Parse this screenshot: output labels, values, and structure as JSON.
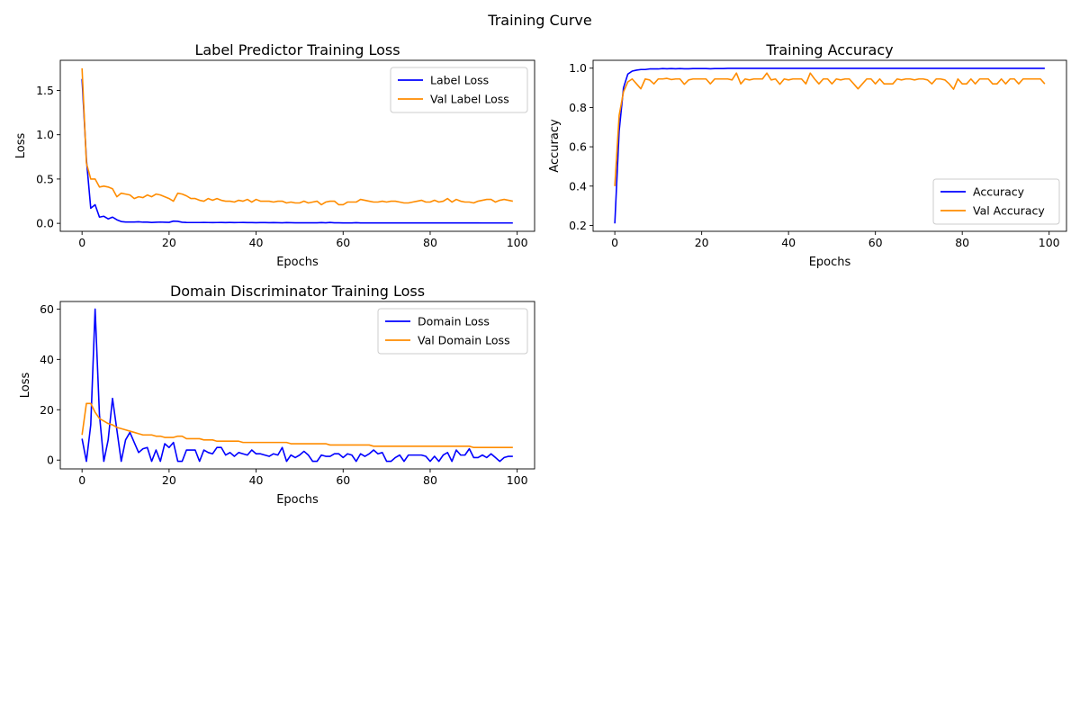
{
  "figure": {
    "title": "Training Curve"
  },
  "chart_data": [
    {
      "type": "line",
      "title": "Label Predictor Training Loss",
      "xlabel": "Epochs",
      "ylabel": "Loss",
      "xlim": [
        -5,
        104
      ],
      "ylim": [
        -0.09,
        1.84
      ],
      "xticks": [
        0,
        20,
        40,
        60,
        80,
        100
      ],
      "xtick_labels": [
        "0",
        "20",
        "40",
        "60",
        "80",
        "100"
      ],
      "yticks": [
        0,
        0.5,
        1,
        1.5
      ],
      "ytick_labels": [
        "0.0",
        "0.5",
        "1.0",
        "1.5"
      ],
      "legend": "upper right",
      "grid": false,
      "x": [
        0,
        1,
        2,
        3,
        4,
        5,
        6,
        7,
        8,
        9,
        10,
        11,
        12,
        13,
        14,
        15,
        16,
        17,
        18,
        19,
        20,
        21,
        22,
        23,
        24,
        25,
        26,
        27,
        28,
        29,
        30,
        31,
        32,
        33,
        34,
        35,
        36,
        37,
        38,
        39,
        40,
        41,
        42,
        43,
        44,
        45,
        46,
        47,
        48,
        49,
        50,
        51,
        52,
        53,
        54,
        55,
        56,
        57,
        58,
        59,
        60,
        61,
        62,
        63,
        64,
        65,
        66,
        67,
        68,
        69,
        70,
        71,
        72,
        73,
        74,
        75,
        76,
        77,
        78,
        79,
        80,
        81,
        82,
        83,
        84,
        85,
        86,
        87,
        88,
        89,
        90,
        91,
        92,
        93,
        94,
        95,
        96,
        97,
        98,
        99
      ],
      "series": [
        {
          "name": "Label Loss",
          "color": "#0000ff",
          "values": [
            1.63,
            0.72,
            0.17,
            0.21,
            0.07,
            0.08,
            0.05,
            0.07,
            0.04,
            0.02,
            0.015,
            0.015,
            0.015,
            0.017,
            0.013,
            0.013,
            0.01,
            0.012,
            0.014,
            0.012,
            0.011,
            0.025,
            0.022,
            0.012,
            0.01,
            0.009,
            0.009,
            0.009,
            0.01,
            0.009,
            0.008,
            0.009,
            0.01,
            0.008,
            0.01,
            0.008,
            0.009,
            0.01,
            0.008,
            0.008,
            0.007,
            0.008,
            0.008,
            0.007,
            0.008,
            0.007,
            0.006,
            0.008,
            0.007,
            0.006,
            0.006,
            0.006,
            0.006,
            0.006,
            0.006,
            0.008,
            0.006,
            0.01,
            0.006,
            0.006,
            0.005,
            0.005,
            0.005,
            0.007,
            0.005,
            0.005,
            0.005,
            0.005,
            0.005,
            0.005,
            0.005,
            0.005,
            0.005,
            0.005,
            0.005,
            0.005,
            0.005,
            0.005,
            0.005,
            0.005,
            0.005,
            0.005,
            0.005,
            0.005,
            0.005,
            0.005,
            0.005,
            0.005,
            0.005,
            0.005,
            0.005,
            0.005,
            0.004,
            0.004,
            0.004,
            0.004,
            0.004,
            0.004,
            0.004,
            0.004
          ]
        },
        {
          "name": "Val Label Loss",
          "color": "#ff8c00",
          "values": [
            1.75,
            0.68,
            0.5,
            0.5,
            0.41,
            0.42,
            0.41,
            0.39,
            0.3,
            0.34,
            0.33,
            0.32,
            0.28,
            0.3,
            0.29,
            0.32,
            0.3,
            0.33,
            0.32,
            0.3,
            0.28,
            0.25,
            0.34,
            0.33,
            0.31,
            0.28,
            0.28,
            0.26,
            0.25,
            0.28,
            0.26,
            0.28,
            0.26,
            0.25,
            0.25,
            0.24,
            0.26,
            0.25,
            0.27,
            0.24,
            0.27,
            0.25,
            0.25,
            0.25,
            0.24,
            0.25,
            0.25,
            0.23,
            0.24,
            0.23,
            0.23,
            0.25,
            0.23,
            0.24,
            0.25,
            0.21,
            0.24,
            0.25,
            0.25,
            0.21,
            0.21,
            0.24,
            0.24,
            0.24,
            0.27,
            0.26,
            0.25,
            0.24,
            0.24,
            0.25,
            0.24,
            0.25,
            0.25,
            0.24,
            0.23,
            0.23,
            0.24,
            0.25,
            0.26,
            0.24,
            0.24,
            0.26,
            0.24,
            0.25,
            0.28,
            0.24,
            0.27,
            0.25,
            0.24,
            0.24,
            0.23,
            0.25,
            0.26,
            0.27,
            0.27,
            0.24,
            0.26,
            0.27,
            0.26,
            0.25
          ]
        }
      ]
    },
    {
      "type": "line",
      "title": "Training Accuracy",
      "xlabel": "Epochs",
      "ylabel": "Accuracy",
      "xlim": [
        -5,
        104
      ],
      "ylim": [
        0.17,
        1.04
      ],
      "xticks": [
        0,
        20,
        40,
        60,
        80,
        100
      ],
      "xtick_labels": [
        "0",
        "20",
        "40",
        "60",
        "80",
        "100"
      ],
      "yticks": [
        0.2,
        0.4,
        0.6,
        0.8,
        1.0
      ],
      "ytick_labels": [
        "0.2",
        "0.4",
        "0.6",
        "0.8",
        "1.0"
      ],
      "legend": "lower right",
      "grid": false,
      "x": [
        0,
        1,
        2,
        3,
        4,
        5,
        6,
        7,
        8,
        9,
        10,
        11,
        12,
        13,
        14,
        15,
        16,
        17,
        18,
        19,
        20,
        21,
        22,
        23,
        24,
        25,
        26,
        27,
        28,
        29,
        30,
        31,
        32,
        33,
        34,
        35,
        36,
        37,
        38,
        39,
        40,
        41,
        42,
        43,
        44,
        45,
        46,
        47,
        48,
        49,
        50,
        51,
        52,
        53,
        54,
        55,
        56,
        57,
        58,
        59,
        60,
        61,
        62,
        63,
        64,
        65,
        66,
        67,
        68,
        69,
        70,
        71,
        72,
        73,
        74,
        75,
        76,
        77,
        78,
        79,
        80,
        81,
        82,
        83,
        84,
        85,
        86,
        87,
        88,
        89,
        90,
        91,
        92,
        93,
        94,
        95,
        96,
        97,
        98,
        99
      ],
      "series": [
        {
          "name": "Accuracy",
          "color": "#0000ff",
          "values": [
            0.21,
            0.68,
            0.9,
            0.97,
            0.985,
            0.99,
            0.993,
            0.993,
            0.996,
            0.996,
            0.996,
            0.998,
            0.997,
            0.998,
            0.997,
            0.998,
            0.997,
            0.997,
            0.998,
            0.998,
            0.998,
            0.998,
            0.997,
            0.998,
            0.998,
            0.998,
            0.999,
            0.999,
            0.999,
            0.999,
            0.999,
            0.999,
            0.999,
            0.999,
            0.999,
            0.999,
            0.999,
            0.999,
            0.999,
            0.999,
            0.999,
            0.999,
            0.999,
            0.999,
            0.999,
            0.999,
            0.999,
            0.999,
            0.999,
            0.999,
            0.999,
            0.999,
            0.999,
            0.999,
            0.999,
            0.999,
            0.999,
            0.999,
            0.999,
            0.999,
            0.999,
            0.999,
            0.999,
            0.999,
            0.999,
            0.999,
            0.999,
            0.999,
            0.999,
            0.999,
            0.999,
            0.999,
            0.999,
            0.999,
            0.999,
            0.999,
            0.999,
            0.999,
            0.999,
            0.999,
            0.999,
            0.999,
            0.999,
            0.999,
            0.999,
            0.999,
            0.999,
            0.999,
            0.999,
            0.999,
            0.999,
            0.999,
            0.999,
            0.999,
            0.999,
            0.999,
            0.999,
            0.999,
            0.999,
            0.999
          ]
        },
        {
          "name": "Val Accuracy",
          "color": "#ff8c00",
          "values": [
            0.4,
            0.76,
            0.88,
            0.93,
            0.945,
            0.92,
            0.895,
            0.945,
            0.94,
            0.92,
            0.945,
            0.945,
            0.948,
            0.942,
            0.945,
            0.945,
            0.918,
            0.94,
            0.945,
            0.945,
            0.945,
            0.945,
            0.92,
            0.945,
            0.945,
            0.945,
            0.945,
            0.94,
            0.975,
            0.92,
            0.945,
            0.94,
            0.945,
            0.945,
            0.945,
            0.975,
            0.94,
            0.945,
            0.918,
            0.945,
            0.94,
            0.945,
            0.945,
            0.945,
            0.92,
            0.975,
            0.945,
            0.92,
            0.945,
            0.945,
            0.92,
            0.945,
            0.94,
            0.945,
            0.945,
            0.92,
            0.895,
            0.92,
            0.945,
            0.945,
            0.92,
            0.945,
            0.92,
            0.92,
            0.92,
            0.945,
            0.94,
            0.945,
            0.945,
            0.94,
            0.945,
            0.945,
            0.94,
            0.92,
            0.945,
            0.945,
            0.94,
            0.92,
            0.893,
            0.945,
            0.92,
            0.92,
            0.945,
            0.92,
            0.945,
            0.945,
            0.945,
            0.92,
            0.92,
            0.945,
            0.92,
            0.945,
            0.945,
            0.92,
            0.945,
            0.945,
            0.945,
            0.945,
            0.945,
            0.92
          ]
        }
      ]
    },
    {
      "type": "line",
      "title": "Domain Discriminator Training Loss",
      "xlabel": "Epochs",
      "ylabel": "Loss",
      "xlim": [
        -5,
        104
      ],
      "ylim": [
        -3.5,
        63
      ],
      "xticks": [
        0,
        20,
        40,
        60,
        80,
        100
      ],
      "xtick_labels": [
        "0",
        "20",
        "40",
        "60",
        "80",
        "100"
      ],
      "yticks": [
        0,
        20,
        40,
        60
      ],
      "ytick_labels": [
        "0",
        "20",
        "40",
        "60"
      ],
      "legend": "upper right",
      "grid": false,
      "x": [
        0,
        1,
        2,
        3,
        4,
        5,
        6,
        7,
        8,
        9,
        10,
        11,
        12,
        13,
        14,
        15,
        16,
        17,
        18,
        19,
        20,
        21,
        22,
        23,
        24,
        25,
        26,
        27,
        28,
        29,
        30,
        31,
        32,
        33,
        34,
        35,
        36,
        37,
        38,
        39,
        40,
        41,
        42,
        43,
        44,
        45,
        46,
        47,
        48,
        49,
        50,
        51,
        52,
        53,
        54,
        55,
        56,
        57,
        58,
        59,
        60,
        61,
        62,
        63,
        64,
        65,
        66,
        67,
        68,
        69,
        70,
        71,
        72,
        73,
        74,
        75,
        76,
        77,
        78,
        79,
        80,
        81,
        82,
        83,
        84,
        85,
        86,
        87,
        88,
        89,
        90,
        91,
        92,
        93,
        94,
        95,
        96,
        97,
        98,
        99
      ],
      "series": [
        {
          "name": "Domain Loss",
          "color": "#0000ff",
          "values": [
            8.5,
            -0.5,
            14,
            60,
            18,
            -0.5,
            8,
            24.5,
            12,
            -0.5,
            8,
            11,
            7,
            3,
            4.5,
            5,
            -0.5,
            4,
            -0.5,
            6.5,
            5,
            7,
            -0.5,
            -0.5,
            4,
            4,
            4,
            -0.5,
            4,
            3,
            2.5,
            5,
            5,
            2,
            3,
            1.5,
            3,
            2.5,
            2,
            4,
            2.5,
            2.5,
            2,
            1.5,
            2.5,
            2,
            5,
            -0.5,
            2,
            1,
            2,
            3.5,
            2,
            -0.5,
            -0.5,
            2,
            1.5,
            1.5,
            2.5,
            2.5,
            1,
            2.5,
            2,
            -0.5,
            2.5,
            1.5,
            2.5,
            4,
            2.5,
            3,
            -0.5,
            -0.5,
            1,
            2,
            -0.5,
            2,
            2,
            2,
            2,
            1.5,
            -0.5,
            1.5,
            -0.5,
            2,
            3,
            -0.5,
            4,
            2,
            2,
            4.5,
            1,
            1,
            2,
            1,
            2.5,
            1,
            -0.5,
            1,
            1.5,
            1.5
          ]
        },
        {
          "name": "Val Domain Loss",
          "color": "#ff8c00",
          "values": [
            10,
            22.5,
            22.5,
            19,
            16.5,
            15.5,
            14.5,
            14,
            13,
            12.5,
            12,
            11.5,
            11,
            10.5,
            10,
            10,
            10,
            9.5,
            9.5,
            9,
            9,
            9,
            9.5,
            9.5,
            8.5,
            8.5,
            8.5,
            8.5,
            8,
            8,
            8,
            7.5,
            7.5,
            7.5,
            7.5,
            7.5,
            7.5,
            7,
            7,
            7,
            7,
            7,
            7,
            7,
            7,
            7,
            7,
            7,
            6.5,
            6.5,
            6.5,
            6.5,
            6.5,
            6.5,
            6.5,
            6.5,
            6.5,
            6,
            6,
            6,
            6,
            6,
            6,
            6,
            6,
            6,
            6,
            5.5,
            5.5,
            5.5,
            5.5,
            5.5,
            5.5,
            5.5,
            5.5,
            5.5,
            5.5,
            5.5,
            5.5,
            5.5,
            5.5,
            5.5,
            5.5,
            5.5,
            5.5,
            5.5,
            5.5,
            5.5,
            5.5,
            5.5,
            5,
            5,
            5,
            5,
            5,
            5,
            5,
            5,
            5,
            5
          ]
        }
      ]
    }
  ]
}
